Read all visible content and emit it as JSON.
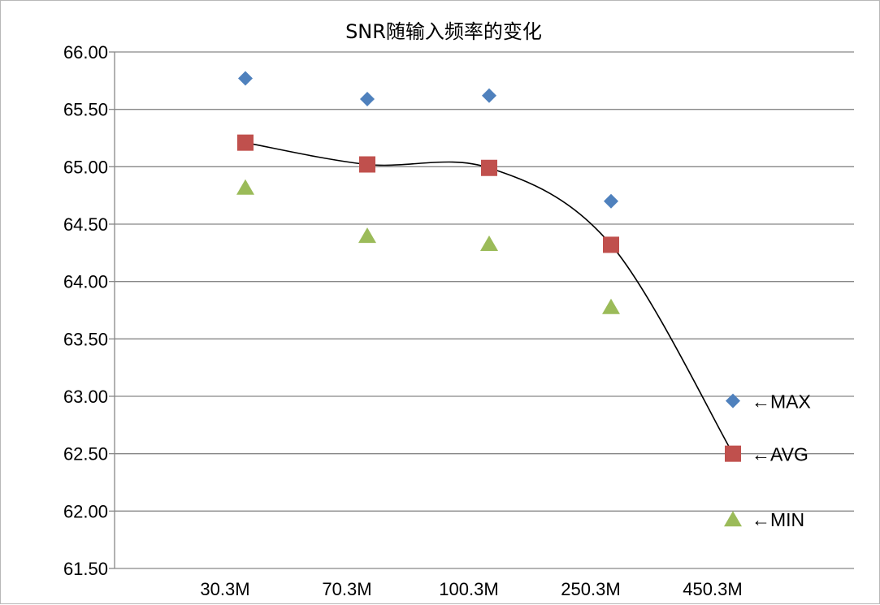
{
  "chart_data": {
    "type": "scatter",
    "title": "SNR随输入频率的变化",
    "xlabel": "",
    "ylabel": "",
    "categories": [
      "30.3M",
      "70.3M",
      "100.3M",
      "250.3M",
      "450.3M"
    ],
    "ylim": [
      61.5,
      66.0
    ],
    "yticks": [
      "66.00",
      "65.50",
      "65.00",
      "64.50",
      "64.00",
      "63.50",
      "63.00",
      "62.50",
      "62.00",
      "61.50"
    ],
    "grid": true,
    "series": [
      {
        "name": "MAX",
        "marker": "diamond",
        "color": "#4f81bd",
        "values": [
          65.77,
          65.59,
          65.62,
          64.7,
          62.96
        ]
      },
      {
        "name": "AVG",
        "marker": "square",
        "color": "#c0504d",
        "values": [
          65.21,
          65.02,
          64.99,
          64.32,
          62.5
        ]
      },
      {
        "name": "MIN",
        "marker": "triangle",
        "color": "#9bbb59",
        "values": [
          64.82,
          64.4,
          64.33,
          63.78,
          61.93
        ]
      }
    ],
    "trendline": {
      "series": "AVG",
      "style": "smooth",
      "color": "#000000"
    },
    "annotations": [
      "←MAX",
      "←AVG",
      "←MIN"
    ]
  }
}
